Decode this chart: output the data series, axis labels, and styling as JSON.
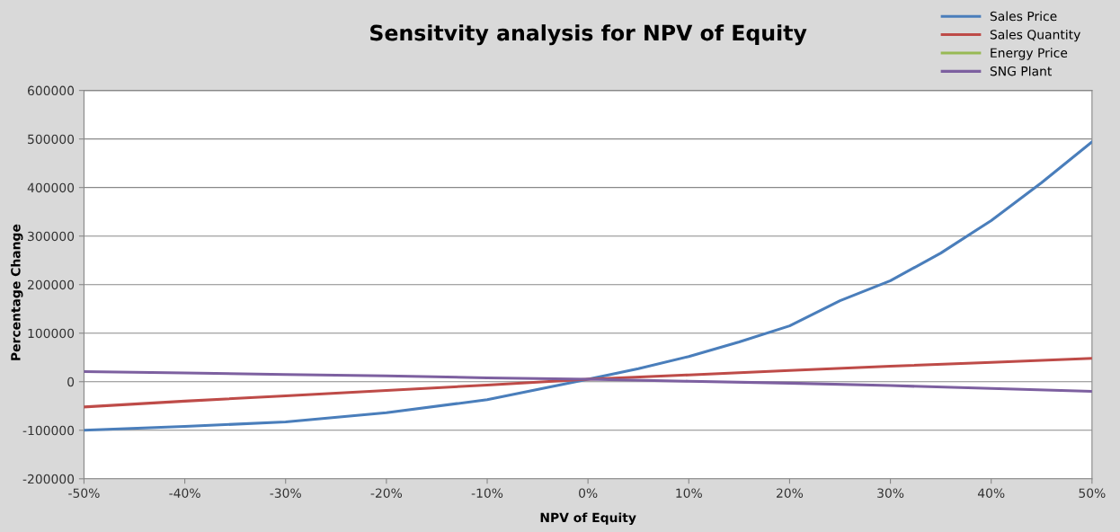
{
  "chart_data": {
    "type": "line",
    "title": "Sensitvity analysis for NPV of Equity",
    "xlabel": "NPV of Equity",
    "ylabel": "Percentage Change",
    "x": [
      -50,
      -40,
      -30,
      -20,
      -10,
      0,
      10,
      20,
      30,
      40,
      50
    ],
    "series": [
      {
        "name": "Sales Price",
        "color": "#4a7ebb",
        "x": [
          -50,
          -40,
          -30,
          -20,
          -10,
          0,
          5,
          10,
          15,
          20,
          25,
          30,
          35,
          40,
          45,
          50
        ],
        "values": [
          -100000,
          -92000,
          -83000,
          -64000,
          -37000,
          5000,
          27000,
          52000,
          82000,
          115000,
          167000,
          208000,
          265000,
          332000,
          410000,
          494000
        ]
      },
      {
        "name": "Sales Quantity",
        "color": "#be4b48",
        "values": [
          -52000,
          -40000,
          -29000,
          -18000,
          -7000,
          5000,
          14000,
          23000,
          32000,
          40000,
          48000
        ]
      },
      {
        "name": "Energy Price",
        "color": "#98b954",
        "values": [
          null,
          null,
          null,
          null,
          null,
          null,
          null,
          null,
          null,
          null,
          null
        ]
      },
      {
        "name": "SNG Plant",
        "color": "#7d60a0",
        "values": [
          21000,
          18000,
          15000,
          12000,
          8000,
          5000,
          1000,
          -3000,
          -8000,
          -14000,
          -20000
        ]
      }
    ],
    "xlim": [
      -50,
      50
    ],
    "xticks": [
      {
        "value": -50,
        "label": "-50%"
      },
      {
        "value": -40,
        "label": "-40%"
      },
      {
        "value": -30,
        "label": "-30%"
      },
      {
        "value": -20,
        "label": "-20%"
      },
      {
        "value": -10,
        "label": "-10%"
      },
      {
        "value": 0,
        "label": "0%"
      },
      {
        "value": 10,
        "label": "10%"
      },
      {
        "value": 20,
        "label": "20%"
      },
      {
        "value": 30,
        "label": "30%"
      },
      {
        "value": 40,
        "label": "40%"
      },
      {
        "value": 50,
        "label": "50%"
      }
    ],
    "ylim": [
      -200000,
      600000
    ],
    "yticks": [
      -200000,
      -100000,
      0,
      100000,
      200000,
      300000,
      400000,
      500000,
      600000
    ],
    "grid": "y",
    "legend": "top right",
    "marker": "none",
    "line_style": "solid"
  }
}
